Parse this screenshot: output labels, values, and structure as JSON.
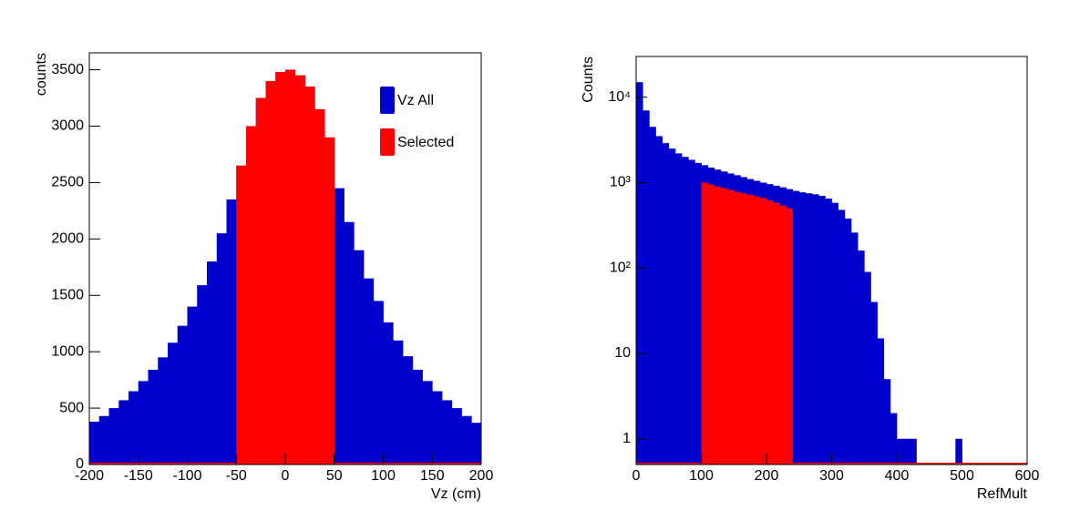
{
  "chart_data": [
    {
      "type": "histogram",
      "xlabel": "Vz (cm)",
      "ylabel": "counts",
      "bins": [
        -200,
        -190,
        -180,
        -170,
        -160,
        -150,
        -140,
        -130,
        -120,
        -110,
        -100,
        -90,
        -80,
        -70,
        -60,
        -50,
        -40,
        -30,
        -20,
        -10,
        0,
        10,
        20,
        30,
        40,
        50,
        60,
        70,
        80,
        90,
        100,
        110,
        120,
        130,
        140,
        150,
        160,
        170,
        180,
        190,
        200
      ],
      "series": [
        {
          "name": "Vz All",
          "color": "#0000cc",
          "values": [
            380,
            430,
            500,
            570,
            650,
            740,
            840,
            950,
            1080,
            1230,
            1400,
            1590,
            1800,
            2050,
            2350,
            2650,
            3000,
            3250,
            3400,
            3480,
            3500,
            3450,
            3350,
            3150,
            2900,
            2450,
            2150,
            1900,
            1650,
            1450,
            1260,
            1100,
            960,
            840,
            740,
            650,
            570,
            500,
            430,
            370
          ]
        },
        {
          "name": "Selected",
          "color": "#ff0000",
          "values": [
            0,
            0,
            0,
            0,
            0,
            0,
            0,
            0,
            0,
            0,
            0,
            0,
            0,
            0,
            0,
            2650,
            3000,
            3250,
            3400,
            3480,
            3500,
            3450,
            3350,
            3150,
            2900,
            0,
            0,
            0,
            0,
            0,
            0,
            0,
            0,
            0,
            0,
            0,
            0,
            0,
            0,
            0
          ]
        }
      ],
      "xlim": [
        -200,
        200
      ],
      "xticks": [
        -200,
        -150,
        -100,
        -50,
        0,
        50,
        100,
        150,
        200
      ],
      "ylim": [
        0,
        3650
      ],
      "yticks": [
        0,
        500,
        1000,
        1500,
        2000,
        2500,
        3000,
        3500
      ],
      "log_y": false,
      "legend": "upper right"
    },
    {
      "type": "histogram",
      "xlabel": "RefMult",
      "ylabel": "Counts",
      "bins": [
        0,
        10,
        20,
        30,
        40,
        50,
        60,
        70,
        80,
        90,
        100,
        110,
        120,
        130,
        140,
        150,
        160,
        170,
        180,
        190,
        200,
        210,
        220,
        230,
        240,
        250,
        260,
        270,
        280,
        290,
        300,
        310,
        320,
        330,
        340,
        350,
        360,
        370,
        380,
        390,
        400,
        410,
        420,
        430,
        440,
        450,
        460,
        470,
        480,
        490,
        500,
        510,
        520,
        530,
        540,
        550,
        560,
        570,
        580,
        590,
        600
      ],
      "series": [
        {
          "color": "#0000cc",
          "values": [
            15000,
            7000,
            4500,
            3500,
            2900,
            2500,
            2200,
            2000,
            1850,
            1700,
            1600,
            1500,
            1420,
            1350,
            1280,
            1220,
            1160,
            1100,
            1050,
            1000,
            960,
            920,
            880,
            840,
            800,
            770,
            750,
            730,
            700,
            650,
            580,
            480,
            380,
            260,
            160,
            90,
            40,
            15,
            5,
            2,
            1,
            1,
            1,
            0,
            0,
            0,
            0,
            0,
            0,
            1,
            0,
            0,
            0,
            0,
            0,
            0,
            0,
            0,
            0,
            0
          ]
        },
        {
          "color": "#ff0000",
          "values": [
            0,
            0,
            0,
            0,
            0,
            0,
            0,
            0,
            0,
            0,
            1000,
            950,
            900,
            860,
            820,
            780,
            750,
            720,
            690,
            660,
            620,
            580,
            540,
            500,
            0,
            0,
            0,
            0,
            0,
            0,
            0,
            0,
            0,
            0,
            0,
            0,
            0,
            0,
            0,
            0,
            0,
            0,
            0,
            0,
            0,
            0,
            0,
            0,
            0,
            0,
            0,
            0,
            0,
            0,
            0,
            0,
            0,
            0,
            0,
            0
          ]
        }
      ],
      "xlim": [
        0,
        600
      ],
      "xticks": [
        0,
        100,
        200,
        300,
        400,
        500,
        600
      ],
      "ylim": [
        0.5,
        30000
      ],
      "yticks": [
        1,
        10,
        {
          "value": 100,
          "label": "10²"
        },
        {
          "value": 1000,
          "label": "10³"
        },
        {
          "value": 10000,
          "label": "10⁴"
        }
      ],
      "log_y": true
    }
  ]
}
